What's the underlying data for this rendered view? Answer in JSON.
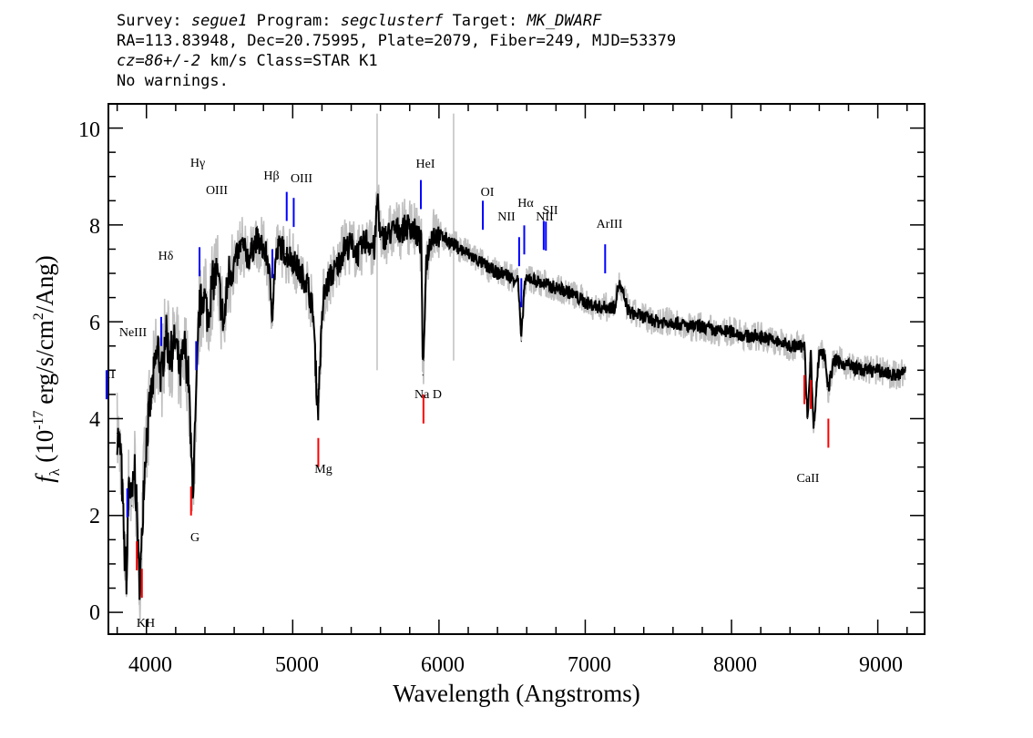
{
  "header": {
    "line1": {
      "survey_label": "Survey:",
      "survey": "segue1",
      "program_label": "Program:",
      "program": "segclusterf",
      "target_label": "Target:",
      "target": "MK_DWARF"
    },
    "line2": "RA=113.83948, Dec=20.75995, Plate=2079, Fiber=249, MJD=53379",
    "line3": {
      "cz": "cz=86+/-2",
      "rest": "km/s Class=STAR K1"
    },
    "line4": "No warnings."
  },
  "chart_data": {
    "type": "line",
    "xlabel": "Wavelength (Angstroms)",
    "ylabel_symbol": "f",
    "ylabel_sub": "λ",
    "ylabel_pre": "(10",
    "ylabel_exp": "-17",
    "ylabel_mid": "erg/s/cm",
    "ylabel_exp2": "2",
    "ylabel_post": "/Ang)",
    "xlim": [
      3740,
      9320
    ],
    "ylim": [
      -0.45,
      10.5
    ],
    "x_ticks": [
      4000,
      5000,
      6000,
      7000,
      8000,
      9000
    ],
    "y_ticks": [
      0,
      2,
      4,
      6,
      8,
      10
    ],
    "x_tick_labels": [
      "4000",
      "5000",
      "6000",
      "7000",
      "8000",
      "9000"
    ],
    "y_tick_labels": [
      "0",
      "2",
      "4",
      "6",
      "8",
      "10"
    ],
    "series": [
      {
        "role": "flux",
        "color": "#000000",
        "x": [
          3800,
          3825,
          3850,
          3865,
          3880,
          3900,
          3920,
          3935,
          3950,
          3965,
          3980,
          4000,
          4030,
          4060,
          4080,
          4101,
          4130,
          4160,
          4200,
          4230,
          4260,
          4290,
          4305,
          4320,
          4340,
          4360,
          4390,
          4420,
          4450,
          4480,
          4510,
          4530,
          4560,
          4600,
          4650,
          4700,
          4750,
          4800,
          4830,
          4861,
          4880,
          4910,
          4950,
          5000,
          5050,
          5100,
          5140,
          5167,
          5175,
          5183,
          5210,
          5250,
          5300,
          5350,
          5400,
          5450,
          5500,
          5560,
          5580,
          5600,
          5650,
          5700,
          5750,
          5800,
          5850,
          5880,
          5890,
          5896,
          5910,
          5950,
          6000,
          6050,
          6100,
          6150,
          6200,
          6250,
          6300,
          6350,
          6400,
          6450,
          6500,
          6540,
          6563,
          6585,
          6620,
          6700,
          6800,
          6900,
          7000,
          7100,
          7200,
          7230,
          7300,
          7400,
          7500,
          7600,
          7700,
          7800,
          7900,
          8000,
          8100,
          8200,
          8300,
          8400,
          8498,
          8520,
          8542,
          8560,
          8600,
          8640,
          8662,
          8700,
          8800,
          8900,
          9000,
          9100,
          9150,
          9190
        ],
        "y": [
          3.7,
          3.3,
          1.2,
          0.7,
          2.8,
          2.2,
          3.0,
          2.0,
          0.6,
          1.1,
          2.6,
          3.6,
          4.4,
          5.1,
          5.5,
          4.8,
          5.8,
          5.3,
          5.6,
          4.9,
          5.5,
          4.8,
          3.2,
          2.6,
          4.3,
          6.2,
          6.6,
          6.1,
          6.8,
          7.0,
          6.4,
          5.9,
          7.0,
          7.2,
          7.6,
          7.3,
          7.7,
          7.5,
          7.3,
          6.2,
          7.2,
          7.6,
          7.4,
          7.3,
          7.0,
          6.8,
          6.2,
          4.4,
          4.2,
          5.0,
          6.5,
          6.9,
          7.1,
          7.5,
          7.6,
          7.4,
          7.7,
          7.5,
          8.6,
          7.7,
          7.8,
          7.9,
          7.9,
          8.0,
          7.8,
          7.6,
          4.9,
          5.2,
          7.2,
          7.8,
          7.8,
          7.7,
          7.6,
          7.5,
          7.4,
          7.3,
          7.2,
          7.1,
          7.0,
          7.0,
          6.9,
          6.9,
          5.6,
          6.8,
          6.9,
          6.8,
          6.7,
          6.6,
          6.4,
          6.3,
          6.3,
          6.8,
          6.2,
          6.1,
          6.0,
          6.0,
          5.9,
          5.9,
          5.8,
          5.8,
          5.7,
          5.7,
          5.6,
          5.5,
          5.5,
          4.0,
          5.4,
          3.8,
          5.4,
          5.3,
          4.6,
          5.2,
          5.1,
          5.0,
          5.0,
          4.9,
          4.9,
          5.0
        ]
      }
    ],
    "lines": [
      {
        "label": "OII",
        "wave": 3727,
        "color": "blue"
      },
      {
        "label": "NeIII",
        "wave": 3869,
        "color": "blue"
      },
      {
        "label": "Hδ",
        "wave": 4101,
        "color": "blue"
      },
      {
        "label": "Hγ",
        "wave": 4340,
        "color": "blue"
      },
      {
        "label": "OIII",
        "wave": 4363,
        "color": "blue"
      },
      {
        "label": "Hβ",
        "wave": 4861,
        "color": "blue"
      },
      {
        "label": "OIII",
        "wave": 4959,
        "color": "blue"
      },
      {
        "label": "OIII",
        "wave": 5007,
        "color": "blue"
      },
      {
        "label": "HeI",
        "wave": 5876,
        "color": "blue"
      },
      {
        "label": "OI",
        "wave": 6300,
        "color": "blue"
      },
      {
        "label": "NII",
        "wave": 6548,
        "color": "blue"
      },
      {
        "label": "Hα",
        "wave": 6563,
        "color": "blue"
      },
      {
        "label": "NII",
        "wave": 6583,
        "color": "blue"
      },
      {
        "label": "SII",
        "wave": 6716,
        "color": "blue"
      },
      {
        "label": "SII",
        "wave": 6731,
        "color": "blue"
      },
      {
        "label": "ArIII",
        "wave": 7136,
        "color": "blue"
      },
      {
        "label": "K",
        "wave": 3934,
        "color": "red"
      },
      {
        "label": "H",
        "wave": 3969,
        "color": "red"
      },
      {
        "label": "G",
        "wave": 4305,
        "color": "red"
      },
      {
        "label": "Mg",
        "wave": 5175,
        "color": "red"
      },
      {
        "label": "Na D",
        "wave": 5894,
        "color": "red"
      },
      {
        "label": "CaII",
        "wave": 8498,
        "color": "red"
      },
      {
        "label": "CaII",
        "wave": 8542,
        "color": "red"
      },
      {
        "label": "CaII",
        "wave": 8662,
        "color": "red"
      }
    ],
    "line_labels": [
      "II",
      "NeIII",
      "Hδ",
      "Hγ",
      "OIII",
      "Hβ",
      "OIII",
      "HeI",
      "OI",
      "NII",
      "Hα",
      "NII",
      "SII",
      "ArIII",
      "KH",
      "G",
      "Mg",
      "Na D",
      "CaII"
    ],
    "colors": {
      "flux": "#000000",
      "noise": "#c0c0c0",
      "emission": "#0000ff",
      "absorption": "#ff0000"
    }
  }
}
